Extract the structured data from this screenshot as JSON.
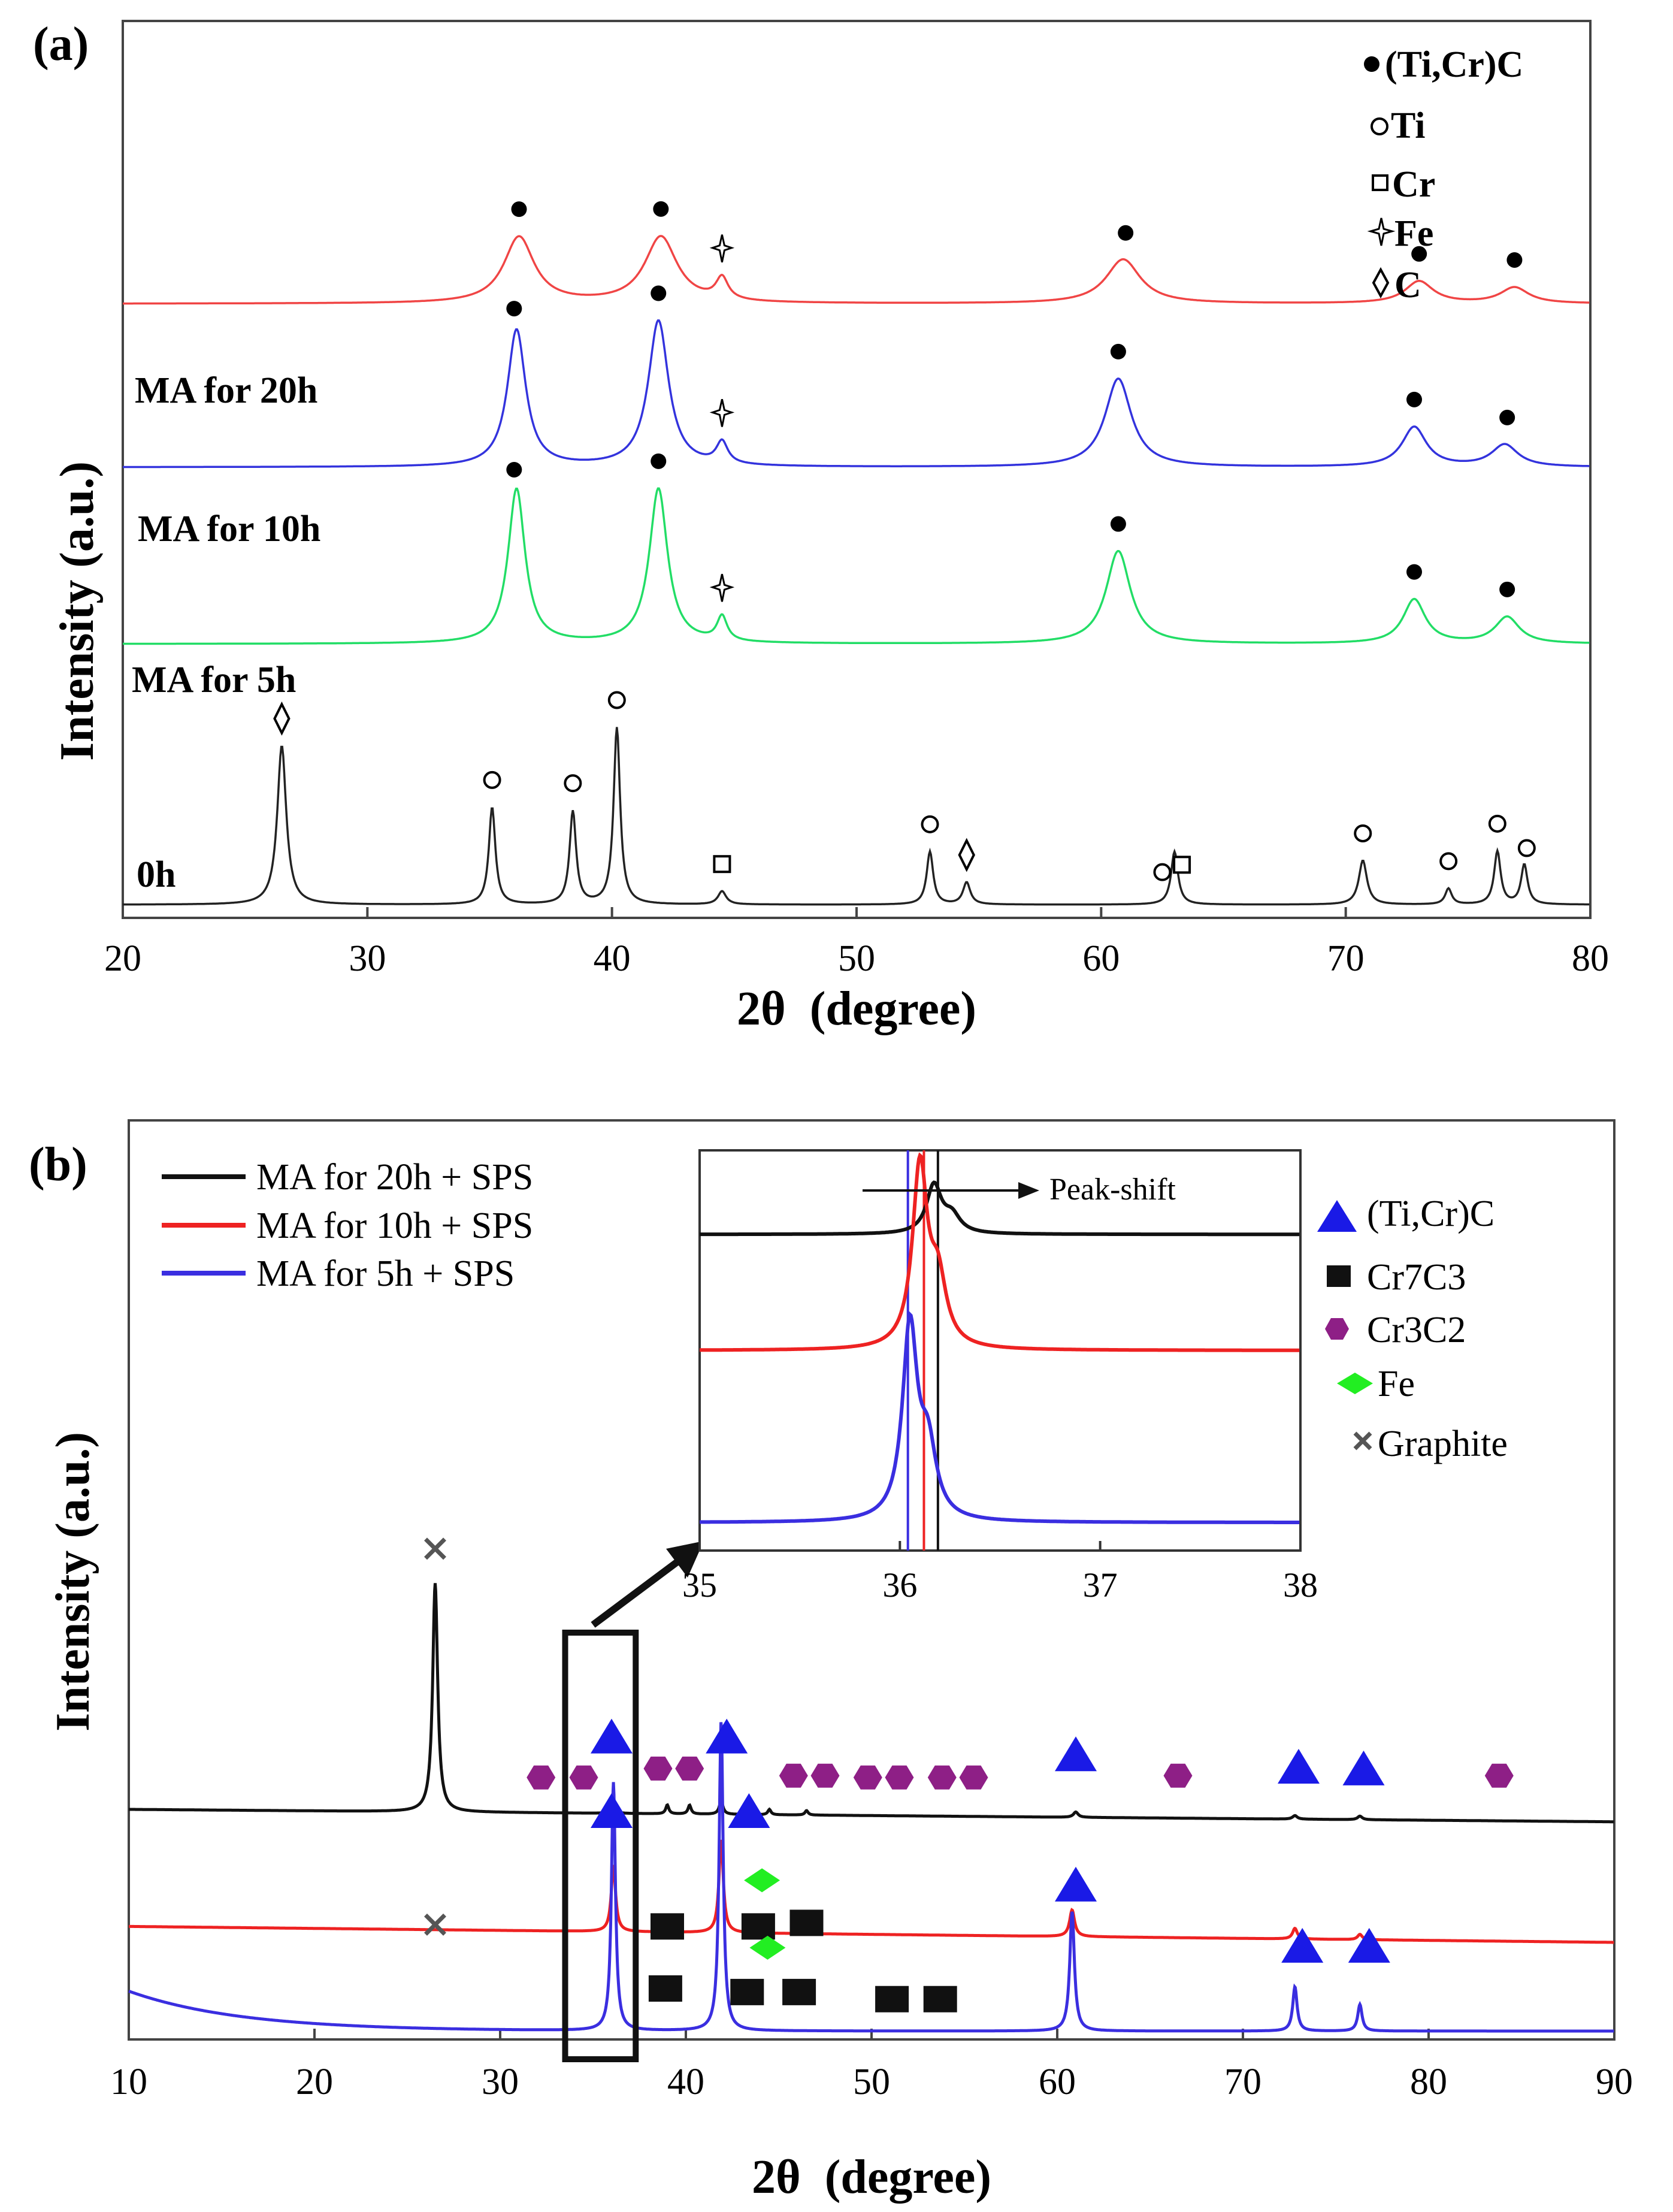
{
  "chart_data": [
    {
      "panel_label": "(a)",
      "type": "line",
      "xlabel": "2θ  (degree)",
      "ylabel": "Intensity (a.u.)",
      "xlim": [
        20,
        80
      ],
      "xticks": [
        "20",
        "30",
        "40",
        "50",
        "60",
        "70",
        "80"
      ],
      "legend": {
        "placement": "top-right",
        "entries": [
          {
            "symbol": "filled-circle",
            "label": "(Ti,Cr)C"
          },
          {
            "symbol": "open-circle",
            "label": "Ti"
          },
          {
            "symbol": "open-square",
            "label": "Cr"
          },
          {
            "symbol": "star",
            "label": "Fe"
          },
          {
            "symbol": "diamond",
            "label": "C"
          }
        ]
      },
      "series": [
        {
          "name": "MA for 20h",
          "color": "#f04545",
          "offset": 0.68,
          "peaks": [
            [
              36.2,
              0.075,
              0.75
            ],
            [
              42.0,
              0.075,
              0.8
            ],
            [
              44.5,
              0.025,
              0.3
            ],
            [
              60.9,
              0.05,
              0.85
            ],
            [
              73.0,
              0.025,
              0.7
            ],
            [
              76.9,
              0.018,
              0.7
            ]
          ],
          "markers": [
            {
              "sym": "filled-circle",
              "x": 36.2
            },
            {
              "sym": "filled-circle",
              "x": 42.0
            },
            {
              "sym": "star",
              "x": 44.5
            },
            {
              "sym": "filled-circle",
              "x": 61.0
            },
            {
              "sym": "filled-circle",
              "x": 73.0
            },
            {
              "sym": "filled-circle",
              "x": 76.9
            }
          ]
        },
        {
          "name": "MA for 10h",
          "color": "#3333dd",
          "offset": 0.495,
          "peaks": [
            [
              36.1,
              0.155,
              0.45
            ],
            [
              41.9,
              0.165,
              0.5
            ],
            [
              44.5,
              0.025,
              0.28
            ],
            [
              60.7,
              0.1,
              0.65
            ],
            [
              72.8,
              0.045,
              0.6
            ],
            [
              76.5,
              0.025,
              0.65
            ]
          ],
          "markers": [
            {
              "sym": "filled-circle",
              "x": 36.0
            },
            {
              "sym": "filled-circle",
              "x": 41.9
            },
            {
              "sym": "star",
              "x": 44.5
            },
            {
              "sym": "filled-circle",
              "x": 60.7
            },
            {
              "sym": "filled-circle",
              "x": 72.8
            },
            {
              "sym": "filled-circle",
              "x": 76.6
            }
          ]
        },
        {
          "name": "MA for 5h",
          "color": "#22dd66",
          "offset": 0.295,
          "peaks": [
            [
              36.1,
              0.175,
              0.42
            ],
            [
              41.9,
              0.175,
              0.45
            ],
            [
              44.5,
              0.028,
              0.25
            ],
            [
              60.7,
              0.105,
              0.6
            ],
            [
              72.8,
              0.05,
              0.55
            ],
            [
              76.6,
              0.03,
              0.6
            ]
          ],
          "markers": [
            {
              "sym": "filled-circle",
              "x": 36.0
            },
            {
              "sym": "filled-circle",
              "x": 41.9
            },
            {
              "sym": "star",
              "x": 44.5
            },
            {
              "sym": "filled-circle",
              "x": 60.7
            },
            {
              "sym": "filled-circle",
              "x": 72.8
            },
            {
              "sym": "filled-circle",
              "x": 76.6
            }
          ]
        },
        {
          "name": "0h",
          "color": "#222222",
          "offset": 0.0,
          "peaks": [
            [
              26.5,
              0.18,
              0.22
            ],
            [
              35.1,
              0.11,
              0.16
            ],
            [
              38.4,
              0.105,
              0.16
            ],
            [
              40.2,
              0.2,
              0.16
            ],
            [
              44.5,
              0.015,
              0.2
            ],
            [
              53.0,
              0.06,
              0.16
            ],
            [
              54.5,
              0.025,
              0.18
            ],
            [
              63.0,
              0.06,
              0.17
            ],
            [
              70.7,
              0.05,
              0.2
            ],
            [
              74.2,
              0.018,
              0.16
            ],
            [
              76.2,
              0.06,
              0.16
            ],
            [
              77.3,
              0.045,
              0.16
            ]
          ],
          "markers": [
            {
              "sym": "diamond",
              "x": 26.5
            },
            {
              "sym": "open-circle",
              "x": 35.1
            },
            {
              "sym": "open-circle",
              "x": 38.4
            },
            {
              "sym": "open-circle",
              "x": 40.2
            },
            {
              "sym": "open-square",
              "x": 44.5
            },
            {
              "sym": "open-circle",
              "x": 53.0
            },
            {
              "sym": "diamond",
              "x": 54.5
            },
            {
              "sym": "open-circle",
              "x": 62.5
            },
            {
              "sym": "open-square",
              "x": 63.3
            },
            {
              "sym": "open-circle",
              "x": 70.7
            },
            {
              "sym": "open-circle",
              "x": 74.2
            },
            {
              "sym": "open-circle",
              "x": 76.2
            },
            {
              "sym": "open-circle",
              "x": 77.4
            }
          ]
        }
      ]
    },
    {
      "panel_label": "(b)",
      "type": "line",
      "xlabel": "2θ  (degree)",
      "ylabel": "Intensity (a.u.)",
      "xlim": [
        10,
        90
      ],
      "xticks": [
        "10",
        "20",
        "30",
        "40",
        "50",
        "60",
        "70",
        "80",
        "90"
      ],
      "series_legend": [
        {
          "label": "MA for 20h + SPS",
          "color": "#111111"
        },
        {
          "label": "MA for 10h + SPS",
          "color": "#ee2222"
        },
        {
          "label": "MA for 5h + SPS",
          "color": "#3a2ee0"
        }
      ],
      "phase_legend": [
        {
          "symbol": "triangle",
          "color": "#1a1ae6",
          "label": "(Ti,Cr)C"
        },
        {
          "symbol": "square",
          "color": "#111111",
          "label": "Cr7C3"
        },
        {
          "symbol": "hexagon",
          "color": "#8e1f86",
          "label": "Cr3C2"
        },
        {
          "symbol": "diamond",
          "color": "#22ee22",
          "label": "Fe"
        },
        {
          "symbol": "cross",
          "color": "#555555",
          "label": "Graphite"
        }
      ],
      "series": [
        {
          "name": "MA for 20h + SPS",
          "color": "#111111",
          "offset": 0.25,
          "end_offset": 0.236,
          "peaks": [
            [
              26.5,
              0.258,
              0.16
            ],
            [
              36.1,
              0.012,
              0.12
            ],
            [
              39.0,
              0.01,
              0.1
            ],
            [
              40.2,
              0.01,
              0.1
            ],
            [
              41.9,
              0.015,
              0.12
            ],
            [
              44.5,
              0.006,
              0.1
            ],
            [
              46.5,
              0.005,
              0.1
            ],
            [
              61.0,
              0.006,
              0.15
            ],
            [
              72.8,
              0.004,
              0.15
            ],
            [
              76.3,
              0.004,
              0.15
            ]
          ],
          "markers": [
            {
              "sym": "hexagon",
              "x": 32.2,
              "y": 0.286
            },
            {
              "sym": "hexagon",
              "x": 34.5,
              "y": 0.286
            },
            {
              "sym": "triangle",
              "x": 36.0,
              "y": 0.332
            },
            {
              "sym": "hexagon",
              "x": 38.5,
              "y": 0.296
            },
            {
              "sym": "hexagon",
              "x": 40.2,
              "y": 0.296
            },
            {
              "sym": "triangle",
              "x": 42.2,
              "y": 0.332
            },
            {
              "sym": "hexagon",
              "x": 45.8,
              "y": 0.288
            },
            {
              "sym": "hexagon",
              "x": 47.5,
              "y": 0.288
            },
            {
              "sym": "hexagon",
              "x": 49.8,
              "y": 0.286
            },
            {
              "sym": "hexagon",
              "x": 51.5,
              "y": 0.286
            },
            {
              "sym": "hexagon",
              "x": 53.8,
              "y": 0.286
            },
            {
              "sym": "hexagon",
              "x": 55.5,
              "y": 0.286
            },
            {
              "sym": "triangle",
              "x": 61.0,
              "y": 0.312
            },
            {
              "sym": "hexagon",
              "x": 66.5,
              "y": 0.288
            },
            {
              "sym": "triangle",
              "x": 73.0,
              "y": 0.298
            },
            {
              "sym": "triangle",
              "x": 76.5,
              "y": 0.296
            },
            {
              "sym": "hexagon",
              "x": 83.8,
              "y": 0.288
            },
            {
              "sym": "cross",
              "x": 26.5,
              "y": 0.544
            }
          ]
        },
        {
          "name": "MA for 10h + SPS",
          "color": "#ee2222",
          "offset": 0.118,
          "end_offset": 0.1,
          "peaks": [
            [
              36.1,
              0.075,
              0.14
            ],
            [
              41.9,
              0.105,
              0.14
            ],
            [
              60.8,
              0.03,
              0.16
            ],
            [
              72.8,
              0.012,
              0.15
            ],
            [
              76.3,
              0.006,
              0.15
            ]
          ],
          "markers": [
            {
              "sym": "cross",
              "x": 26.5,
              "y": 0.12
            },
            {
              "sym": "square",
              "x": 39.0,
              "y": 0.118
            },
            {
              "sym": "diamond",
              "x": 44.1,
              "y": 0.17
            },
            {
              "sym": "square",
              "x": 43.9,
              "y": 0.118
            },
            {
              "sym": "square",
              "x": 46.5,
              "y": 0.122
            }
          ]
        },
        {
          "name": "MA for 5h + SPS",
          "color": "#3a2ee0",
          "offset": 0.0,
          "start_rise": 0.045,
          "peaks": [
            [
              36.1,
              0.28,
              0.13
            ],
            [
              41.9,
              0.35,
              0.13
            ],
            [
              60.8,
              0.135,
              0.15
            ],
            [
              72.8,
              0.05,
              0.14
            ],
            [
              76.3,
              0.03,
              0.14
            ]
          ],
          "markers": [
            {
              "sym": "triangle",
              "x": 36.0,
              "y": 0.248
            },
            {
              "sym": "triangle",
              "x": 43.4,
              "y": 0.248
            },
            {
              "sym": "triangle",
              "x": 61.0,
              "y": 0.165
            },
            {
              "sym": "triangle",
              "x": 73.2,
              "y": 0.096
            },
            {
              "sym": "triangle",
              "x": 76.8,
              "y": 0.096
            },
            {
              "sym": "square",
              "x": 38.9,
              "y": 0.048
            },
            {
              "sym": "square",
              "x": 43.3,
              "y": 0.044
            },
            {
              "sym": "diamond",
              "x": 44.4,
              "y": 0.094
            },
            {
              "sym": "square",
              "x": 46.1,
              "y": 0.044
            },
            {
              "sym": "square",
              "x": 51.1,
              "y": 0.036
            },
            {
              "sym": "square",
              "x": 53.7,
              "y": 0.036
            }
          ]
        }
      ],
      "highlight_box": {
        "x_range": [
          33.5,
          37.3
        ]
      },
      "inset": {
        "xlim": [
          35,
          38
        ],
        "xticks": [
          "35",
          "36",
          "37",
          "38"
        ],
        "annotation": "Peak-shift",
        "series": [
          {
            "name": "MA for 20h + SPS",
            "color": "#111111",
            "peak_x": 36.17,
            "height": 0.12,
            "base": 0.79
          },
          {
            "name": "MA for 10h + SPS",
            "color": "#ee2222",
            "peak_x": 36.1,
            "height": 0.45,
            "base": 0.5
          },
          {
            "name": "MA for 5h + SPS",
            "color": "#3a2ee0",
            "peak_x": 36.05,
            "height": 0.48,
            "base": 0.07
          }
        ],
        "guide_lines": [
          {
            "x": 36.04,
            "color": "#3a2ee0"
          },
          {
            "x": 36.12,
            "color": "#ee2222"
          },
          {
            "x": 36.19,
            "color": "#111111"
          }
        ]
      }
    }
  ]
}
